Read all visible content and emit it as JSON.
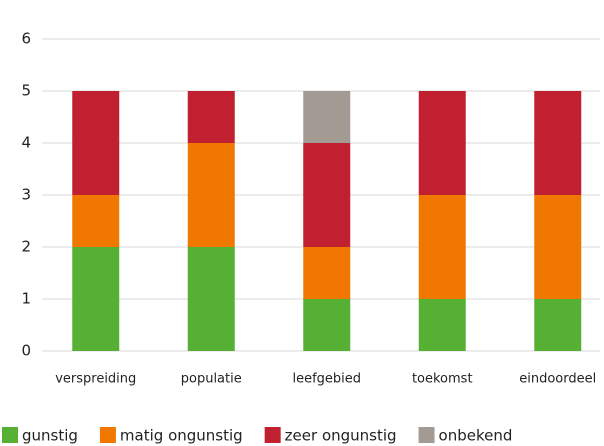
{
  "chart_data": {
    "type": "stacked-bar",
    "categories": [
      "verspreiding",
      "populatie",
      "leefgebied",
      "toekomst",
      "eindoordeel"
    ],
    "series": [
      {
        "name": "gunstig",
        "color": "#55b033",
        "values": [
          2,
          2,
          1,
          1,
          1
        ]
      },
      {
        "name": "matig ongunstig",
        "color": "#f07800",
        "values": [
          1,
          2,
          1,
          2,
          2
        ]
      },
      {
        "name": "zeer ongunstig",
        "color": "#c0202f",
        "values": [
          2,
          1,
          2,
          2,
          2
        ]
      },
      {
        "name": "onbekend",
        "color": "#a39a93",
        "values": [
          0,
          0,
          1,
          0,
          0
        ]
      }
    ],
    "ylim": [
      0,
      6
    ],
    "yticks": [
      0,
      1,
      2,
      3,
      4,
      5,
      6
    ],
    "grid": true,
    "legend": "bottom"
  }
}
